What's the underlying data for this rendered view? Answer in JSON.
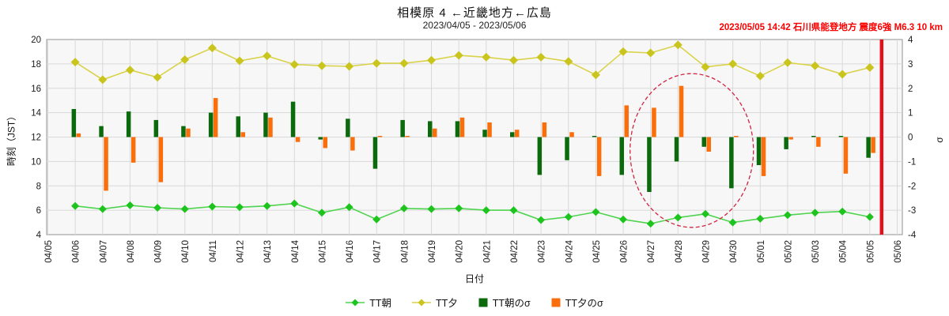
{
  "title": "相模原 4 ←近畿地方←広島",
  "subtitle": "2023/04/05 - 2023/05/06",
  "quake_annotation": "2023/05/05 14:42 石川県能登地方 震度6強 M6.3 10 km",
  "legend": {
    "items": [
      {
        "label": "TT朝"
      },
      {
        "label": "TT夕"
      },
      {
        "label": "TT朝のσ"
      },
      {
        "label": "TT夕のσ"
      }
    ]
  },
  "colors": {
    "tt_asa_line": "#4fd44f",
    "tt_asa_marker": "#1ec41e",
    "tt_yuu_line": "#d9d24a",
    "tt_yuu_marker": "#c9c51d",
    "sigma_asa": "#0b6a0b",
    "sigma_yuu": "#fa6e0c",
    "event_red": "#e60e1a",
    "ellipse": "#cf2440",
    "grid": "#d9d9d9",
    "plot_bg": "#f7f7f7",
    "plot_border": "#909090",
    "tick_text": "#1a1a1a"
  },
  "chart_data": {
    "type": "line+bar",
    "x_dates": [
      "04/05",
      "04/06",
      "04/07",
      "04/08",
      "04/09",
      "04/10",
      "04/11",
      "04/12",
      "04/13",
      "04/14",
      "04/15",
      "04/16",
      "04/17",
      "04/18",
      "04/19",
      "04/20",
      "04/21",
      "04/22",
      "04/23",
      "04/24",
      "04/25",
      "04/26",
      "04/27",
      "04/28",
      "04/29",
      "04/30",
      "05/01",
      "05/02",
      "05/03",
      "05/04",
      "05/05",
      "05/06"
    ],
    "data_dates": [
      "04/06",
      "04/07",
      "04/08",
      "04/09",
      "04/10",
      "04/11",
      "04/12",
      "04/13",
      "04/14",
      "04/15",
      "04/16",
      "04/17",
      "04/18",
      "04/19",
      "04/20",
      "04/21",
      "04/22",
      "04/23",
      "04/24",
      "04/25",
      "04/26",
      "04/27",
      "04/28",
      "04/29",
      "04/30",
      "05/01",
      "05/02",
      "05/03",
      "05/04",
      "05/05"
    ],
    "series": [
      {
        "name": "TT朝",
        "type": "line",
        "axis": "left",
        "values": [
          6.35,
          6.1,
          6.4,
          6.2,
          6.1,
          6.3,
          6.25,
          6.35,
          6.55,
          5.8,
          6.25,
          5.25,
          6.15,
          6.1,
          6.15,
          6.0,
          6.0,
          5.2,
          5.45,
          5.85,
          5.25,
          4.9,
          5.4,
          5.7,
          5.0,
          5.3,
          5.6,
          5.8,
          5.9,
          5.45
        ]
      },
      {
        "name": "TT夕",
        "type": "line",
        "axis": "left",
        "values": [
          18.15,
          16.7,
          17.5,
          16.9,
          18.35,
          19.3,
          18.25,
          18.65,
          17.95,
          17.85,
          17.8,
          18.05,
          18.05,
          18.3,
          18.7,
          18.55,
          18.3,
          18.55,
          18.2,
          17.1,
          19.0,
          18.9,
          19.55,
          17.75,
          18.0,
          17.0,
          18.1,
          17.85,
          17.15,
          17.7
        ]
      },
      {
        "name": "TT朝のσ",
        "type": "bar",
        "axis": "right",
        "values": [
          1.15,
          0.45,
          1.05,
          0.7,
          0.45,
          1.0,
          0.85,
          1.0,
          1.45,
          -0.1,
          0.75,
          -1.3,
          0.7,
          0.65,
          0.65,
          0.3,
          0.2,
          -1.55,
          -0.95,
          0.05,
          -1.55,
          -2.25,
          -1.0,
          -0.4,
          -2.1,
          -1.15,
          -0.5,
          0.05,
          0.05,
          -0.85
        ]
      },
      {
        "name": "TT夕のσ",
        "type": "bar",
        "axis": "right",
        "values": [
          0.15,
          -2.2,
          -1.05,
          -1.85,
          0.35,
          1.6,
          0.2,
          0.8,
          -0.2,
          -0.45,
          -0.55,
          0.05,
          0.05,
          0.35,
          0.8,
          0.6,
          0.3,
          0.6,
          0.2,
          -1.6,
          1.3,
          1.2,
          2.1,
          -0.6,
          0.05,
          -1.6,
          -0.1,
          -0.4,
          -1.5,
          -0.65
        ]
      }
    ],
    "left_axis": {
      "label": "時刻（JST）",
      "min": 4,
      "max": 20,
      "ticks": [
        20,
        18,
        16,
        14,
        12,
        10,
        8,
        6,
        4
      ]
    },
    "right_axis": {
      "label": "σ",
      "min": -4,
      "max": 4,
      "ticks": [
        4,
        3,
        2,
        1,
        0,
        -1,
        -2,
        -3,
        -4
      ]
    },
    "xlabel": "日付",
    "grid": true,
    "event_line": {
      "day_offset": 30.43
    },
    "highlight_ellipse": {
      "cx_day_index": 23.5,
      "cy_jst": 10.9,
      "rx_days": 2.25,
      "ry_jst": 6.3
    }
  }
}
